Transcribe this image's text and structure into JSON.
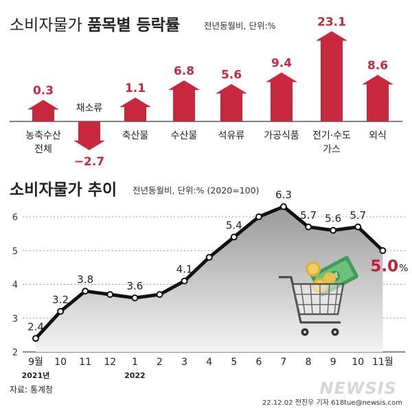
{
  "top": {
    "title": "소비자물가 품목별 등락률",
    "title_plain": "소비자물가 ",
    "title_bold": "품목별 등락률",
    "subtitle": "전년동월비, 단위:%"
  },
  "bottom": {
    "title": "소비자물가 추이",
    "subtitle": "전년동월비, 단위:% (2020=100)"
  },
  "source": "자료: 통계청",
  "credit": "22.12.02 전진우 기자 618tue@newsis.com",
  "watermark": "NEWSIS",
  "colors": {
    "arrow_red": "#c8283c",
    "highlight_red": "#c41e34",
    "line": "#111111",
    "area_top": "#9a9a9a",
    "area_bottom": "#f4f4f4",
    "grid": "#999999",
    "background": "#ffffff"
  },
  "illustration": {
    "name": "shopping-cart-with-money-icon"
  },
  "chart_data": [
    {
      "type": "bar",
      "title": "소비자물가 품목별 등락률",
      "subtitle": "전년동월비, 단위:%",
      "categories": [
        "농축수산\n전체",
        "채소류",
        "축산물",
        "수산물",
        "석유류",
        "가공식품",
        "전기·수도\n가스",
        "외식"
      ],
      "values": [
        0.3,
        -2.7,
        1.1,
        6.8,
        5.6,
        9.4,
        23.1,
        8.6
      ],
      "value_labels": [
        "0.3",
        "−2.7",
        "1.1",
        "6.8",
        "5.6",
        "9.4",
        "23.1",
        "8.6"
      ],
      "mark": "arrow",
      "color": "#c8283c"
    },
    {
      "type": "area",
      "title": "소비자물가 추이",
      "subtitle": "전년동월비, 단위:% (2020=100)",
      "categories": [
        "9월",
        "10",
        "11",
        "12",
        "1",
        "2",
        "3",
        "4",
        "5",
        "6",
        "7",
        "8",
        "9",
        "10",
        "11월"
      ],
      "year_labels": [
        {
          "index": 0,
          "text": "2021년"
        },
        {
          "index": 4,
          "text": "2022"
        }
      ],
      "values": [
        2.4,
        3.2,
        3.8,
        3.7,
        3.6,
        3.7,
        4.1,
        4.8,
        5.4,
        6.0,
        6.3,
        5.7,
        5.6,
        5.7,
        5.0
      ],
      "point_labels": [
        {
          "index": 0,
          "text": "2.4"
        },
        {
          "index": 1,
          "text": "3.2"
        },
        {
          "index": 2,
          "text": "3.8"
        },
        {
          "index": 4,
          "text": "3.6"
        },
        {
          "index": 6,
          "text": "4.1"
        },
        {
          "index": 8,
          "text": "5.4"
        },
        {
          "index": 10,
          "text": "6.3"
        },
        {
          "index": 11,
          "text": "5.7"
        },
        {
          "index": 12,
          "text": "5.6"
        },
        {
          "index": 13,
          "text": "5.7"
        }
      ],
      "last_label": {
        "value": "5.0",
        "unit": "%"
      },
      "yticks": [
        2,
        3,
        4,
        5,
        6
      ],
      "ylim": [
        2,
        6.5
      ],
      "grid": true
    }
  ]
}
